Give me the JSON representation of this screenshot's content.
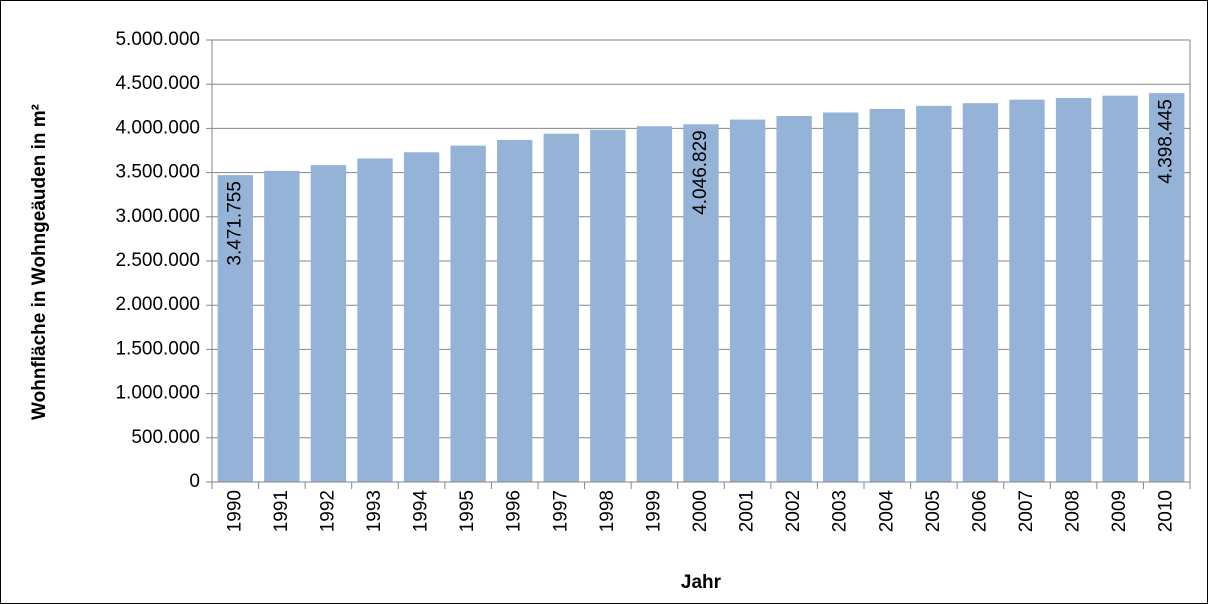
{
  "chart_data": {
    "type": "bar",
    "y_label": "Wohnfläche in Wohngeäuden in m²",
    "x_label": "Jahr",
    "categories": [
      "1990",
      "1991",
      "1992",
      "1993",
      "1994",
      "1995",
      "1996",
      "1997",
      "1998",
      "1999",
      "2000",
      "2001",
      "2002",
      "2003",
      "2004",
      "2005",
      "2006",
      "2007",
      "2008",
      "2009",
      "2010"
    ],
    "values": [
      3471755,
      3520000,
      3585000,
      3660000,
      3730000,
      3805000,
      3870000,
      3940000,
      3985000,
      4025000,
      4046829,
      4100000,
      4140000,
      4180000,
      4220000,
      4255000,
      4285000,
      4325000,
      4345000,
      4370000,
      4398445
    ],
    "value_labels": [
      "3.471.755",
      null,
      null,
      null,
      null,
      null,
      null,
      null,
      null,
      null,
      "4.046.829",
      null,
      null,
      null,
      null,
      null,
      null,
      null,
      null,
      null,
      "4.398.445"
    ],
    "color": "#95b3d7",
    "ylim": [
      0,
      5000000
    ],
    "yticks": [
      0,
      {
        "value": 500000,
        "label": "500.000"
      },
      {
        "value": 1000000,
        "label": "1.000.000"
      },
      {
        "value": 1500000,
        "label": "1.500.000"
      },
      {
        "value": 2000000,
        "label": "2.000.000"
      },
      {
        "value": 2500000,
        "label": "2.500.000"
      },
      {
        "value": 3000000,
        "label": "3.000.000"
      },
      {
        "value": 3500000,
        "label": "3.500.000"
      },
      {
        "value": 4000000,
        "label": "4.000.000"
      },
      {
        "value": 4500000,
        "label": "4.500.000"
      },
      {
        "value": 5000000,
        "label": "5.000.000"
      }
    ],
    "grid": true
  }
}
